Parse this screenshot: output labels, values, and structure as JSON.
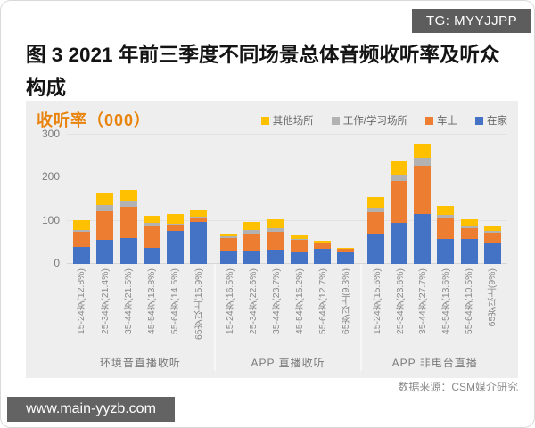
{
  "page": {
    "tg_badge": "TG: MYYJJPP",
    "title": "图 3 2021 年前三季度不同场景总体音频收听率及听众构成",
    "source": "数据来源：CSM媒介研究",
    "site_badge": "www.main-yyzb.com"
  },
  "chart_data": {
    "type": "bar",
    "stacked": true,
    "title": "收听率（000）",
    "title_color": "#e8830c",
    "ylim": [
      0,
      300
    ],
    "yticks": [
      0,
      100,
      200,
      300
    ],
    "grid": true,
    "legend_position": "top-right",
    "legend": [
      {
        "name": "其他场所",
        "color": "#FFC000"
      },
      {
        "name": "工作/学习场所",
        "color": "#B2B2B2"
      },
      {
        "name": "车上",
        "color": "#ED7D31"
      },
      {
        "name": "在家",
        "color": "#4472C4"
      }
    ],
    "stack_order_bottom_to_top": [
      "在家",
      "车上",
      "工作/学习场所",
      "其他场所"
    ],
    "groups": [
      {
        "label": "环境音直播收听",
        "categories": [
          "15-24岁(12.8%)",
          "25-34岁(21.4%)",
          "35-44岁(21.5%)",
          "45-54岁(13.8%)",
          "55-64岁(14.5%)",
          "65岁以上(15.9%)"
        ],
        "series": [
          {
            "name": "在家",
            "values": [
              40,
              56,
              60,
              37,
              77,
              97
            ]
          },
          {
            "name": "车上",
            "values": [
              35,
              67,
              72,
              50,
              14,
              11
            ]
          },
          {
            "name": "工作/学习场所",
            "values": [
              4,
              13,
              14,
              8,
              3,
              2
            ]
          },
          {
            "name": "其他场所",
            "values": [
              22,
              30,
              26,
              17,
              21,
              15
            ]
          }
        ]
      },
      {
        "label": "APP 直播收听",
        "categories": [
          "15-24岁(16.5%)",
          "25-34岁(22.6%)",
          "35-44岁(23.7%)",
          "45-54岁(15.2%)",
          "55-64岁(12.7%)",
          "65岁以上(9.3%)"
        ],
        "series": [
          {
            "name": "在家",
            "values": [
              28,
              30,
              34,
              27,
              36,
              27
            ]
          },
          {
            "name": "车上",
            "values": [
              33,
              40,
              41,
              28,
              12,
              8
            ]
          },
          {
            "name": "工作/学习场所",
            "values": [
              4,
              9,
              8,
              3,
              2,
              1
            ]
          },
          {
            "name": "其他场所",
            "values": [
              5,
              18,
              20,
              8,
              4,
              2
            ]
          }
        ]
      },
      {
        "label": "APP 非电台直播",
        "categories": [
          "15-24岁(15.6%)",
          "25-34岁(23.6%)",
          "35-44岁(27.7%)",
          "45-54岁(13.6%)",
          "55-64岁(10.5%)",
          "65岁以上(9%)"
        ],
        "series": [
          {
            "name": "在家",
            "values": [
              70,
              96,
              115,
              58,
              58,
              49
            ]
          },
          {
            "name": "车上",
            "values": [
              50,
              96,
              112,
              48,
              25,
              23
            ]
          },
          {
            "name": "工作/学习场所",
            "values": [
              10,
              15,
              19,
              8,
              6,
              5
            ]
          },
          {
            "name": "其他场所",
            "values": [
              25,
              30,
              31,
              20,
              15,
              11
            ]
          }
        ]
      }
    ],
    "source": "数据来源：CSM媒介研究"
  }
}
